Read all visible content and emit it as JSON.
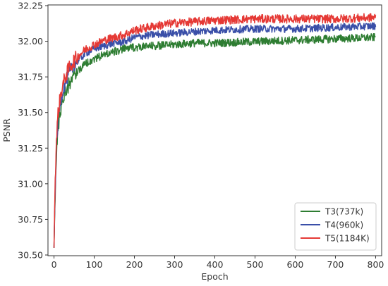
{
  "chart_data": {
    "type": "line",
    "xlabel": "Epoch",
    "ylabel": "PSNR",
    "xlim": [
      -15,
      815
    ],
    "ylim": [
      30.495,
      32.255
    ],
    "x_ticks": [
      0,
      100,
      200,
      300,
      400,
      500,
      600,
      700,
      800
    ],
    "y_ticks": [
      30.5,
      30.75,
      31.0,
      31.25,
      31.5,
      31.75,
      32.0,
      32.25
    ],
    "y_tick_labels": [
      "30.50",
      "30.75",
      "31.00",
      "31.25",
      "31.50",
      "31.75",
      "32.00",
      "32.25"
    ],
    "grid": false,
    "legend_position": "lower-right",
    "series": [
      {
        "name": "T3(737k)",
        "color": "#2e7d32",
        "noise": 0.028,
        "points": [
          [
            0,
            30.55
          ],
          [
            3,
            30.95
          ],
          [
            6,
            31.2
          ],
          [
            10,
            31.4
          ],
          [
            15,
            31.5
          ],
          [
            20,
            31.58
          ],
          [
            30,
            31.66
          ],
          [
            40,
            31.72
          ],
          [
            50,
            31.77
          ],
          [
            60,
            31.8
          ],
          [
            80,
            31.85
          ],
          [
            100,
            31.88
          ],
          [
            125,
            31.91
          ],
          [
            150,
            31.93
          ],
          [
            175,
            31.95
          ],
          [
            200,
            31.96
          ],
          [
            250,
            31.97
          ],
          [
            300,
            31.98
          ],
          [
            350,
            31.99
          ],
          [
            400,
            31.99
          ],
          [
            500,
            32.0
          ],
          [
            600,
            32.01
          ],
          [
            700,
            32.02
          ],
          [
            800,
            32.03
          ]
        ]
      },
      {
        "name": "T4(960k)",
        "color": "#3a4fa8",
        "noise": 0.026,
        "points": [
          [
            0,
            30.55
          ],
          [
            3,
            31.0
          ],
          [
            6,
            31.25
          ],
          [
            10,
            31.45
          ],
          [
            15,
            31.56
          ],
          [
            20,
            31.64
          ],
          [
            30,
            31.73
          ],
          [
            40,
            31.79
          ],
          [
            50,
            31.84
          ],
          [
            60,
            31.87
          ],
          [
            80,
            31.92
          ],
          [
            100,
            31.95
          ],
          [
            125,
            31.97
          ],
          [
            150,
            31.99
          ],
          [
            175,
            32.0
          ],
          [
            200,
            32.03
          ],
          [
            250,
            32.05
          ],
          [
            300,
            32.06
          ],
          [
            350,
            32.07
          ],
          [
            400,
            32.08
          ],
          [
            500,
            32.09
          ],
          [
            600,
            32.09
          ],
          [
            700,
            32.1
          ],
          [
            800,
            32.11
          ]
        ]
      },
      {
        "name": "T5(1184K)",
        "color": "#e53935",
        "noise": 0.03,
        "points": [
          [
            0,
            30.55
          ],
          [
            3,
            31.05
          ],
          [
            6,
            31.3
          ],
          [
            10,
            31.5
          ],
          [
            15,
            31.6
          ],
          [
            20,
            31.68
          ],
          [
            30,
            31.77
          ],
          [
            40,
            31.83
          ],
          [
            50,
            31.87
          ],
          [
            60,
            31.9
          ],
          [
            80,
            31.95
          ],
          [
            100,
            31.98
          ],
          [
            125,
            32.01
          ],
          [
            150,
            32.03
          ],
          [
            175,
            32.05
          ],
          [
            200,
            32.08
          ],
          [
            250,
            32.11
          ],
          [
            300,
            32.13
          ],
          [
            350,
            32.14
          ],
          [
            400,
            32.15
          ],
          [
            500,
            32.16
          ],
          [
            600,
            32.16
          ],
          [
            700,
            32.16
          ],
          [
            800,
            32.17
          ]
        ]
      }
    ]
  }
}
